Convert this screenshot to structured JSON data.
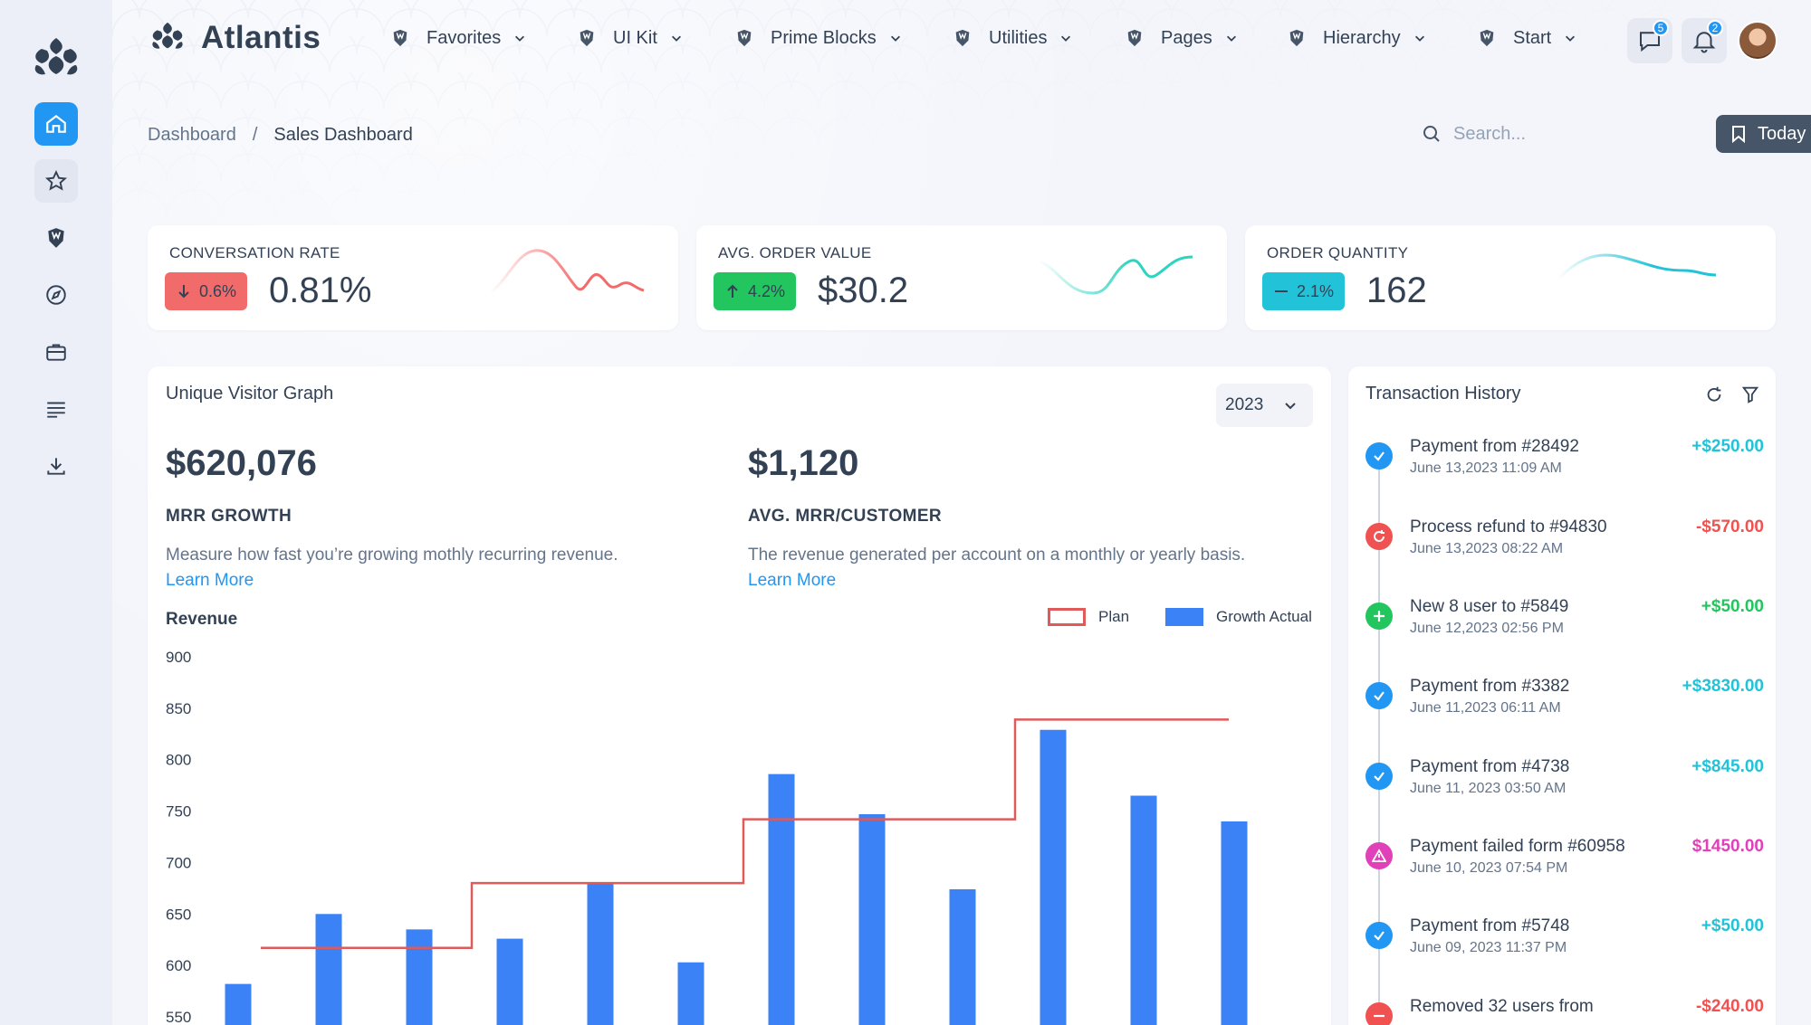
{
  "brand": {
    "name": "Atlantis"
  },
  "menu": [
    {
      "label": "Favorites"
    },
    {
      "label": "UI Kit"
    },
    {
      "label": "Prime Blocks"
    },
    {
      "label": "Utilities"
    },
    {
      "label": "Pages"
    },
    {
      "label": "Hierarchy"
    },
    {
      "label": "Start"
    }
  ],
  "notifications": {
    "chat_count": "5",
    "bell_count": "2"
  },
  "breadcrumb": {
    "root": "Dashboard",
    "separator": "/",
    "current": "Sales Dashboard"
  },
  "search": {
    "placeholder": "Search..."
  },
  "today_button": {
    "label": "Today"
  },
  "kpis": [
    {
      "title": "CONVERSATION RATE",
      "change": "0.6%",
      "value": "0.81%",
      "direction": "down",
      "color": "#f26b6b"
    },
    {
      "title": "AVG. ORDER VALUE",
      "change": "4.2%",
      "value": "$30.2",
      "direction": "up",
      "color": "#22c55e"
    },
    {
      "title": "ORDER QUANTITY",
      "change": "2.1%",
      "value": "162",
      "direction": "flat",
      "color": "#22c3d8"
    }
  ],
  "visitor": {
    "title": "Unique Visitor Graph",
    "year": "2023",
    "mrr": {
      "value": "$620,076",
      "label": "MRR GROWTH",
      "desc": "Measure how fast you’re growing mothly recurring revenue.",
      "link": "Learn More"
    },
    "avg": {
      "value": "$1,120",
      "label": "AVG. MRR/CUSTOMER",
      "desc": "The revenue generated per account on a monthly or yearly basis.",
      "link": "Learn More"
    },
    "chart_title": "Revenue",
    "legend": {
      "plan": "Plan",
      "growth": "Growth Actual"
    }
  },
  "chart_data": {
    "type": "bar",
    "title": "Revenue",
    "yticks": [
      900,
      850,
      800,
      750,
      700,
      650,
      600,
      550
    ],
    "ylim": [
      550,
      900
    ],
    "series": [
      {
        "name": "Growth Actual",
        "type": "bar",
        "color": "#3b82f6",
        "values": [
          582,
          650,
          635,
          626,
          680,
          603,
          786,
          747,
          674,
          829,
          765,
          740
        ]
      },
      {
        "name": "Plan",
        "type": "step",
        "color": "#e05a5a",
        "values": [
          617,
          617,
          617,
          680,
          680,
          680,
          742,
          742,
          742,
          839,
          839,
          839
        ]
      }
    ],
    "legend_position": "top-right",
    "grid": false
  },
  "transactions": {
    "title": "Transaction History",
    "items": [
      {
        "title": "Payment from #28492",
        "date": "June 13,2023 11:09 AM",
        "amount": "+$250.00",
        "status": "done",
        "color": "#2196f3",
        "amount_color": "#22c3d8"
      },
      {
        "title": "Process refund to #94830",
        "date": "June 13,2023 08:22 AM",
        "amount": "-$570.00",
        "status": "refund",
        "color": "#f05252",
        "amount_color": "#f05252"
      },
      {
        "title": "New 8 user to #5849",
        "date": "June 12,2023 02:56 PM",
        "amount": "+$50.00",
        "status": "add",
        "color": "#22c55e",
        "amount_color": "#22c55e"
      },
      {
        "title": "Payment from #3382",
        "date": "June 11,2023 06:11 AM",
        "amount": "+$3830.00",
        "status": "done",
        "color": "#2196f3",
        "amount_color": "#22c3d8"
      },
      {
        "title": "Payment from #4738",
        "date": "June 11, 2023 03:50 AM",
        "amount": "+$845.00",
        "status": "done",
        "color": "#2196f3",
        "amount_color": "#22c3d8"
      },
      {
        "title": "Payment failed form #60958",
        "date": "June 10, 2023 07:54 PM",
        "amount": "$1450.00",
        "status": "warning",
        "color": "#e040b8",
        "amount_color": "#e040b8"
      },
      {
        "title": "Payment from #5748",
        "date": "June 09, 2023 11:37 PM",
        "amount": "+$50.00",
        "status": "done",
        "color": "#2196f3",
        "amount_color": "#22c3d8"
      },
      {
        "title": "Removed 32 users from",
        "date": "",
        "amount": "-$240.00",
        "status": "remove",
        "color": "#f05252",
        "amount_color": "#f05252"
      }
    ]
  }
}
